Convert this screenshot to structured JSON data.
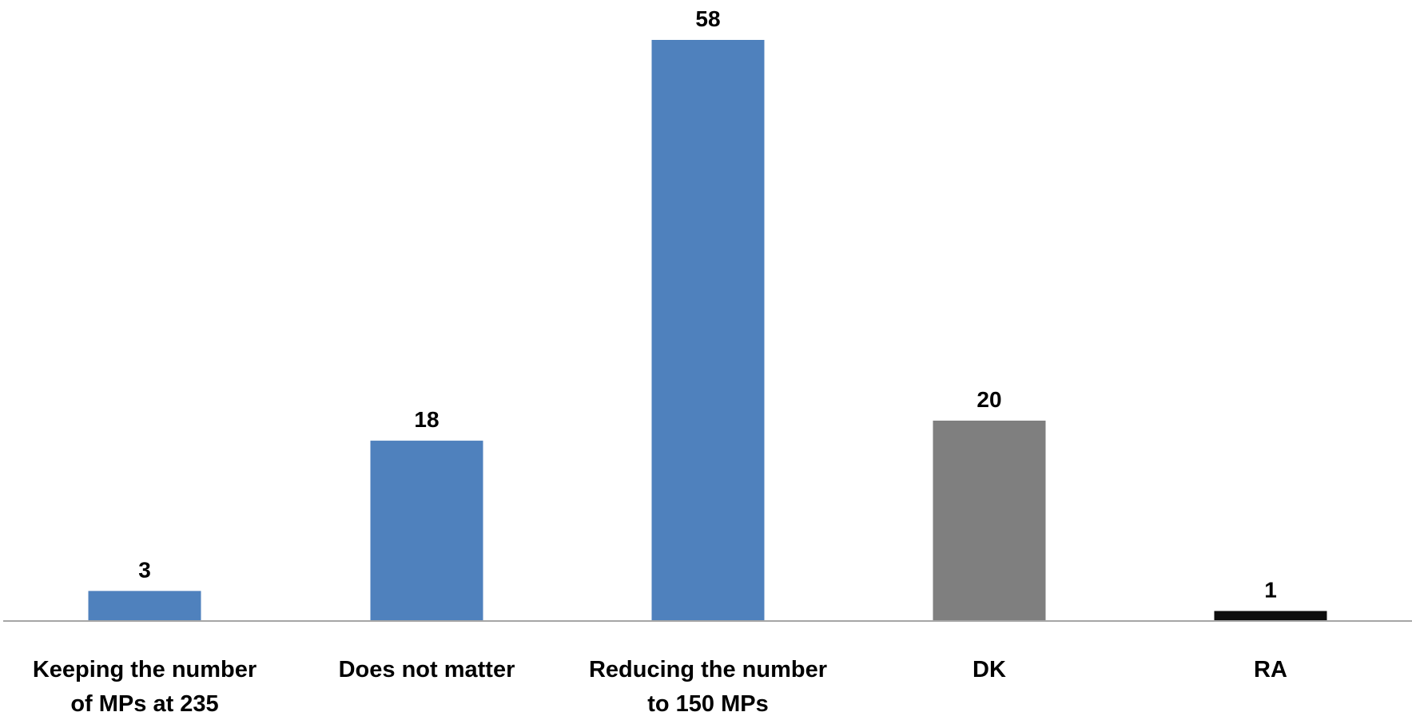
{
  "chart_data": {
    "type": "bar",
    "categories": [
      [
        "Keeping the number",
        "of MPs at 235"
      ],
      [
        "Does not matter"
      ],
      [
        "Reducing the number",
        "to 150 MPs"
      ],
      [
        "DK"
      ],
      [
        "RA"
      ]
    ],
    "values": [
      3,
      18,
      58,
      20,
      1
    ],
    "bar_colors": [
      "#4f81bd",
      "#4f81bd",
      "#4f81bd",
      "#7f7f7f",
      "#0d0d0d"
    ],
    "axis_color": "#a6a6a6",
    "ylim": [
      0,
      58
    ],
    "data_labels": true,
    "grid": false,
    "legend": "none",
    "title": "",
    "xlabel": "",
    "ylabel": ""
  }
}
